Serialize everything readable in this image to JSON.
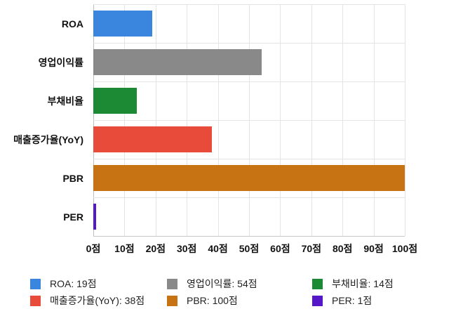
{
  "chart_data": {
    "type": "bar",
    "orientation": "horizontal",
    "title": "",
    "categories": [
      "ROA",
      "영업이익률",
      "부채비율",
      "매출증가율(YoY)",
      "PBR",
      "PER"
    ],
    "values": [
      19,
      54,
      14,
      38,
      100,
      1
    ],
    "value_unit": "점",
    "bar_colors": [
      "#3A86DE",
      "#898989",
      "#1C8A34",
      "#E84B3A",
      "#C77313",
      "#5517C8"
    ],
    "x_axis": {
      "min": 0,
      "max": 100,
      "step": 10,
      "tick_labels": [
        "0점",
        "10점",
        "20점",
        "30점",
        "40점",
        "50점",
        "60점",
        "70점",
        "80점",
        "90점",
        "100점"
      ]
    },
    "grid": true,
    "legend": {
      "position": "bottom",
      "rows": 2,
      "columns": 3,
      "items": [
        {
          "label": "ROA: 19점",
          "color": "#3A86DE"
        },
        {
          "label": "영업이익률: 54점",
          "color": "#898989"
        },
        {
          "label": "부채비율: 14점",
          "color": "#1C8A34"
        },
        {
          "label": "매출증가율(YoY): 38점",
          "color": "#E84B3A"
        },
        {
          "label": "PBR: 100점",
          "color": "#C77313"
        },
        {
          "label": "PER: 1점",
          "color": "#5517C8"
        }
      ]
    }
  },
  "colors": {
    "background": "#FFFFFF",
    "gridline": "#E4E4E4",
    "axis_line": "#BDBDBD",
    "tick_text": "#111111",
    "category_text": "#111111",
    "legend_text": "#222222"
  }
}
